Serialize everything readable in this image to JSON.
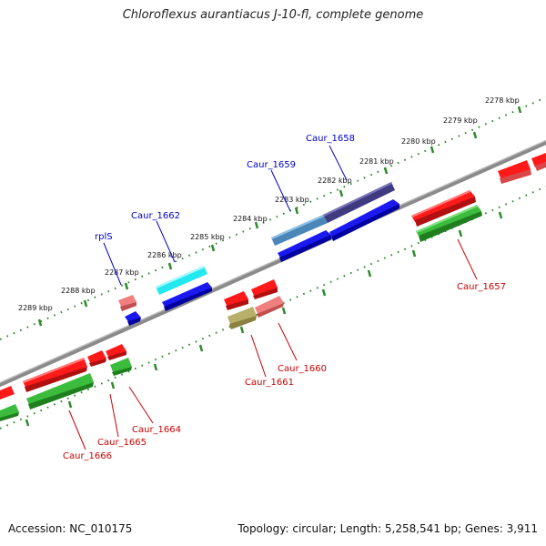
{
  "title": "Chloroflexus aurantiacus J-10-fl, complete genome",
  "footer": {
    "accession": "Accession: NC_010175",
    "summary": "Topology: circular; Length: 5,258,541 bp; Genes: 3,911"
  },
  "colors": {
    "backbone": "#8a8a8a",
    "ruler": "#2e8b2e",
    "label_blue": "#0000cc",
    "label_red": "#cc0000",
    "red": "#ff1a1a",
    "pink": "#f08080",
    "blue": "#1a1af0",
    "cyan": "#22e8f0",
    "navy": "#403a80",
    "steel": "#4a86b8",
    "green": "#3cbc3c",
    "olive": "#b8b06a"
  },
  "scale": {
    "kbp_labels": [
      "2278 kbp",
      "2279 kbp",
      "2280 kbp",
      "2281 kbp",
      "2282 kbp",
      "2283 kbp",
      "2284 kbp",
      "2285 kbp",
      "2286 kbp",
      "2287 kbp",
      "2288 kbp",
      "2289 kbp"
    ]
  },
  "gene_labels": {
    "top": [
      "rplS",
      "Caur_1662",
      "Caur_1659",
      "Caur_1658"
    ],
    "bottom": [
      "Caur_1666",
      "Caur_1665",
      "Caur_1664",
      "Caur_1661",
      "Caur_1660",
      "Caur_1657"
    ]
  }
}
